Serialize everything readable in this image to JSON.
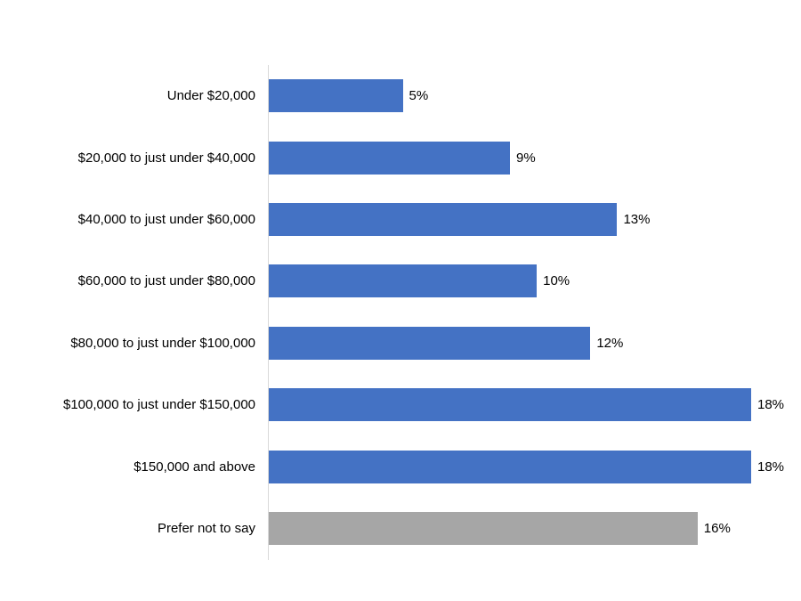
{
  "chart_data": {
    "type": "bar",
    "orientation": "horizontal",
    "title": "",
    "xlabel": "",
    "ylabel": "",
    "xlim": [
      0,
      18
    ],
    "grid": false,
    "legend": "none",
    "categories": [
      "Under $20,000",
      "$20,000 to just under $40,000",
      "$40,000 to just under $60,000",
      "$60,000 to just under $80,000",
      "$80,000 to just under $100,000",
      "$100,000 to just under $150,000",
      "$150,000 and above",
      "Prefer not to say"
    ],
    "values": [
      5,
      9,
      13,
      10,
      12,
      18,
      18,
      16
    ],
    "value_labels": [
      "5%",
      "9%",
      "13%",
      "10%",
      "12%",
      "18%",
      "18%",
      "16%"
    ],
    "bar_colors": [
      "#4472C4",
      "#4472C4",
      "#4472C4",
      "#4472C4",
      "#4472C4",
      "#4472C4",
      "#4472C4",
      "#A6A6A6"
    ],
    "accent_color": "#4472C4",
    "muted_color": "#A6A6A6",
    "axis_line_color": "#D9D9D9",
    "label_color": "#000000"
  }
}
